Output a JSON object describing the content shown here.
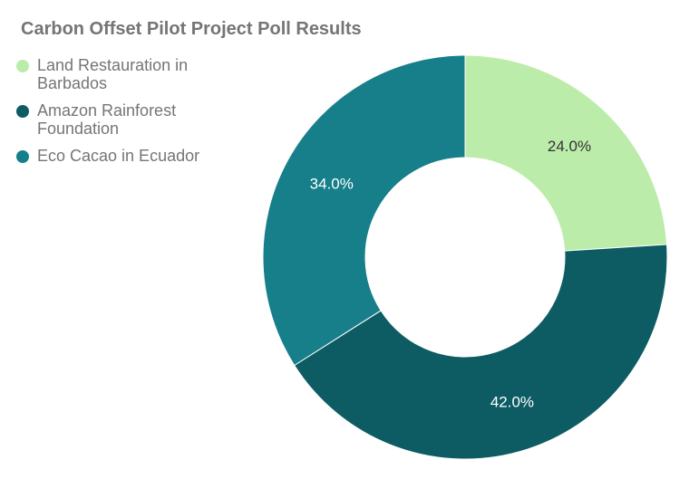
{
  "chart_data": {
    "type": "pie",
    "donut": true,
    "title": "Carbon Offset Pilot Project Poll Results",
    "legend_position": "top-left",
    "categories": [
      "Land Restauration in Barbados",
      "Amazon Rainforest Foundation",
      "Eco Cacao in Ecuador"
    ],
    "values": [
      24.0,
      42.0,
      34.0
    ],
    "value_labels": [
      "24.0%",
      "42.0%",
      "34.0%"
    ],
    "colors": [
      "#bcecaa",
      "#0d5c63",
      "#167f8a"
    ],
    "label_colors": [
      "#333333",
      "#ffffff",
      "#ffffff"
    ]
  }
}
